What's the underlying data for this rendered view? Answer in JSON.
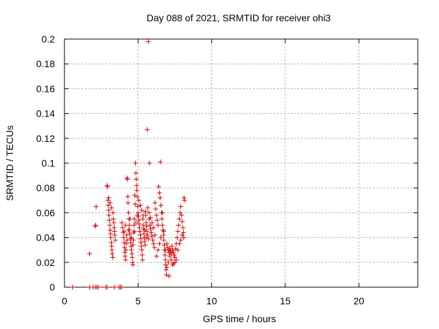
{
  "chart_data": {
    "type": "scatter",
    "title": "Day 088 of 2021, SRMTID for receiver ohi3",
    "xlabel": "GPS time / hours",
    "ylabel": "SRMTID / TECUs",
    "xlim": [
      0,
      24
    ],
    "ylim": [
      0,
      0.2
    ],
    "xticks": [
      0,
      5,
      10,
      15,
      20
    ],
    "xtick_labels": [
      "0",
      "5",
      "10",
      "15",
      "20"
    ],
    "yticks": [
      0,
      0.02,
      0.04,
      0.06,
      0.08,
      0.1,
      0.12,
      0.14,
      0.16,
      0.18,
      0.2
    ],
    "ytick_labels": [
      "0",
      "0.02",
      "0.04",
      "0.06",
      "0.08",
      "0.1",
      "0.12",
      "0.14",
      "0.16",
      "0.18",
      "0.2"
    ],
    "grid": true,
    "marker": "+",
    "color": "#e00000",
    "series": [
      {
        "name": "SRMTID",
        "points": [
          [
            0.55,
            0.0
          ],
          [
            1.7,
            0.0
          ],
          [
            1.95,
            0.0
          ],
          [
            2.1,
            0.0
          ],
          [
            2.2,
            0.0
          ],
          [
            2.3,
            0.0
          ],
          [
            2.8,
            0.0
          ],
          [
            2.9,
            0.0
          ],
          [
            3.4,
            0.0
          ],
          [
            3.7,
            0.0
          ],
          [
            3.8,
            0.0
          ],
          [
            3.9,
            0.0
          ],
          [
            1.7,
            0.027
          ],
          [
            2.1,
            0.049
          ],
          [
            2.12,
            0.05
          ],
          [
            2.15,
            0.065
          ],
          [
            2.9,
            0.082
          ],
          [
            2.92,
            0.081
          ],
          [
            2.95,
            0.07
          ],
          [
            2.98,
            0.066
          ],
          [
            3.0,
            0.062
          ],
          [
            3.02,
            0.058
          ],
          [
            3.05,
            0.054
          ],
          [
            3.08,
            0.05
          ],
          [
            3.1,
            0.046
          ],
          [
            3.12,
            0.043
          ],
          [
            3.15,
            0.04
          ],
          [
            3.18,
            0.036
          ],
          [
            3.2,
            0.033
          ],
          [
            3.22,
            0.03
          ],
          [
            3.25,
            0.027
          ],
          [
            3.28,
            0.024
          ],
          [
            3.3,
            0.06
          ],
          [
            3.32,
            0.055
          ],
          [
            3.35,
            0.052
          ],
          [
            3.38,
            0.048
          ],
          [
            3.4,
            0.045
          ],
          [
            3.42,
            0.042
          ],
          [
            3.45,
            0.038
          ],
          [
            3.0,
            0.072
          ],
          [
            3.1,
            0.068
          ],
          [
            3.2,
            0.064
          ],
          [
            3.9,
            0.052
          ],
          [
            3.95,
            0.048
          ],
          [
            4.0,
            0.044
          ],
          [
            4.02,
            0.04
          ],
          [
            4.05,
            0.036
          ],
          [
            4.08,
            0.032
          ],
          [
            4.1,
            0.028
          ],
          [
            4.12,
            0.025
          ],
          [
            4.15,
            0.022
          ],
          [
            4.18,
            0.03
          ],
          [
            4.2,
            0.035
          ],
          [
            4.22,
            0.042
          ],
          [
            4.25,
            0.088
          ],
          [
            4.28,
            0.087
          ],
          [
            4.3,
            0.073
          ],
          [
            4.32,
            0.068
          ],
          [
            4.35,
            0.06
          ],
          [
            4.38,
            0.055
          ],
          [
            4.4,
            0.05
          ],
          [
            4.42,
            0.046
          ],
          [
            4.45,
            0.043
          ],
          [
            4.48,
            0.039
          ],
          [
            4.5,
            0.036
          ],
          [
            4.52,
            0.033
          ],
          [
            4.55,
            0.03
          ],
          [
            4.58,
            0.027
          ],
          [
            4.6,
            0.024
          ],
          [
            4.62,
            0.02
          ],
          [
            4.65,
            0.018
          ],
          [
            4.68,
            0.038
          ],
          [
            4.7,
            0.044
          ],
          [
            4.72,
            0.05
          ],
          [
            4.75,
            0.055
          ],
          [
            4.78,
            0.074
          ],
          [
            4.8,
            0.067
          ],
          [
            4.82,
            0.1
          ],
          [
            4.85,
            0.092
          ],
          [
            4.88,
            0.087
          ],
          [
            4.9,
            0.082
          ],
          [
            4.92,
            0.078
          ],
          [
            4.95,
            0.073
          ],
          [
            4.98,
            0.065
          ],
          [
            5.0,
            0.06
          ],
          [
            5.02,
            0.057
          ],
          [
            5.05,
            0.054
          ],
          [
            5.08,
            0.051
          ],
          [
            5.1,
            0.048
          ],
          [
            5.12,
            0.045
          ],
          [
            5.15,
            0.042
          ],
          [
            5.18,
            0.039
          ],
          [
            5.2,
            0.036
          ],
          [
            5.22,
            0.033
          ],
          [
            5.25,
            0.03
          ],
          [
            5.28,
            0.026
          ],
          [
            5.3,
            0.022
          ],
          [
            5.32,
            0.055
          ],
          [
            5.35,
            0.05
          ],
          [
            5.38,
            0.047
          ],
          [
            5.4,
            0.043
          ],
          [
            5.42,
            0.04
          ],
          [
            5.45,
            0.037
          ],
          [
            5.48,
            0.034
          ],
          [
            5.5,
            0.061
          ],
          [
            5.52,
            0.058
          ],
          [
            5.55,
            0.052
          ],
          [
            5.58,
            0.049
          ],
          [
            5.62,
            0.127
          ],
          [
            5.7,
            0.198
          ],
          [
            5.78,
            0.1
          ],
          [
            5.6,
            0.045
          ],
          [
            5.65,
            0.042
          ],
          [
            5.7,
            0.039
          ],
          [
            5.75,
            0.055
          ],
          [
            5.8,
            0.05
          ],
          [
            5.85,
            0.047
          ],
          [
            5.9,
            0.044
          ],
          [
            5.95,
            0.041
          ],
          [
            6.0,
            0.038
          ],
          [
            6.05,
            0.035
          ],
          [
            6.1,
            0.032
          ],
          [
            6.15,
            0.068
          ],
          [
            6.2,
            0.063
          ],
          [
            6.25,
            0.058
          ],
          [
            6.3,
            0.054
          ],
          [
            6.35,
            0.05
          ],
          [
            6.4,
            0.081
          ],
          [
            6.45,
            0.076
          ],
          [
            6.5,
            0.072
          ],
          [
            6.52,
            0.101
          ],
          [
            6.55,
            0.066
          ],
          [
            6.6,
            0.06
          ],
          [
            6.62,
            0.055
          ],
          [
            6.65,
            0.05
          ],
          [
            6.7,
            0.046
          ],
          [
            6.72,
            0.042
          ],
          [
            6.75,
            0.038
          ],
          [
            6.78,
            0.034
          ],
          [
            6.8,
            0.03
          ],
          [
            6.82,
            0.026
          ],
          [
            6.85,
            0.022
          ],
          [
            6.88,
            0.018
          ],
          [
            6.9,
            0.014
          ],
          [
            6.92,
            0.01
          ],
          [
            7.1,
            0.009
          ],
          [
            6.95,
            0.035
          ],
          [
            7.0,
            0.032
          ],
          [
            7.05,
            0.03
          ],
          [
            7.1,
            0.028
          ],
          [
            7.15,
            0.031
          ],
          [
            7.2,
            0.029
          ],
          [
            7.25,
            0.027
          ],
          [
            7.3,
            0.033
          ],
          [
            7.35,
            0.03
          ],
          [
            7.4,
            0.028
          ],
          [
            7.45,
            0.026
          ],
          [
            7.5,
            0.024
          ],
          [
            7.55,
            0.031
          ],
          [
            7.6,
            0.035
          ],
          [
            7.65,
            0.04
          ],
          [
            7.7,
            0.045
          ],
          [
            7.75,
            0.05
          ],
          [
            7.8,
            0.055
          ],
          [
            7.85,
            0.06
          ],
          [
            7.9,
            0.065
          ],
          [
            7.95,
            0.058
          ],
          [
            8.0,
            0.053
          ],
          [
            8.05,
            0.048
          ],
          [
            8.08,
            0.044
          ],
          [
            8.1,
            0.04
          ],
          [
            8.12,
            0.072
          ],
          [
            8.15,
            0.07
          ],
          [
            7.7,
            0.03
          ],
          [
            7.8,
            0.035
          ],
          [
            7.9,
            0.038
          ],
          [
            8.0,
            0.042
          ],
          [
            7.6,
            0.022
          ],
          [
            7.5,
            0.02
          ],
          [
            7.4,
            0.019
          ],
          [
            7.35,
            0.018
          ],
          [
            7.25,
            0.022
          ],
          [
            7.15,
            0.025
          ],
          [
            7.05,
            0.02
          ],
          [
            6.95,
            0.016
          ],
          [
            6.85,
            0.03
          ],
          [
            6.75,
            0.045
          ],
          [
            6.65,
            0.06
          ],
          [
            6.55,
            0.04
          ],
          [
            6.45,
            0.035
          ],
          [
            6.35,
            0.03
          ],
          [
            6.25,
            0.025
          ],
          [
            6.15,
            0.042
          ],
          [
            6.05,
            0.048
          ],
          [
            5.95,
            0.052
          ],
          [
            5.85,
            0.056
          ],
          [
            5.75,
            0.06
          ],
          [
            5.65,
            0.064
          ],
          [
            5.55,
            0.04
          ],
          [
            5.45,
            0.046
          ],
          [
            5.35,
            0.058
          ],
          [
            5.25,
            0.062
          ],
          [
            5.15,
            0.066
          ],
          [
            5.05,
            0.07
          ],
          [
            4.95,
            0.058
          ],
          [
            4.85,
            0.052
          ],
          [
            4.75,
            0.045
          ],
          [
            4.65,
            0.034
          ],
          [
            4.55,
            0.04
          ],
          [
            4.45,
            0.055
          ],
          [
            4.35,
            0.046
          ],
          [
            4.25,
            0.038
          ],
          [
            4.15,
            0.05
          ],
          [
            4.05,
            0.045
          ]
        ]
      }
    ]
  }
}
